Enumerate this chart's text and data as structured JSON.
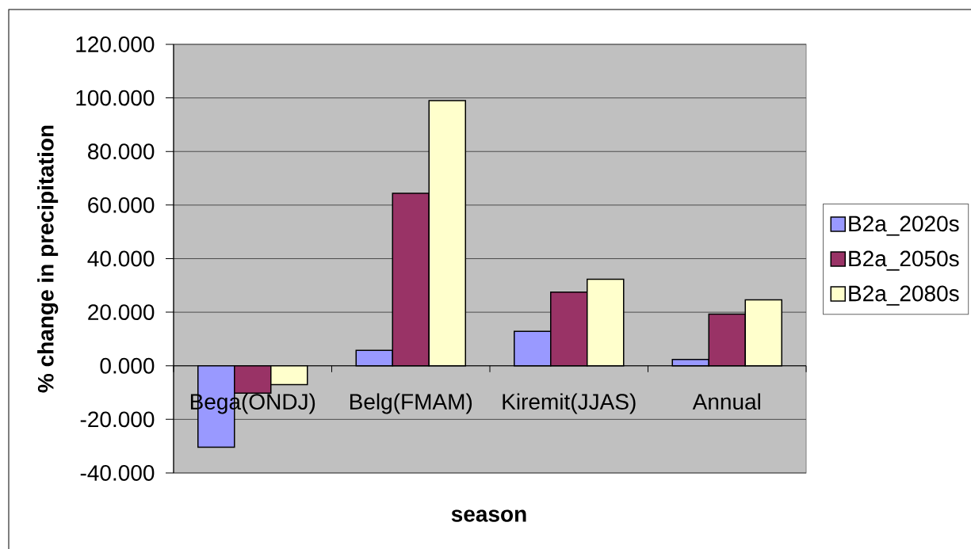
{
  "chart_data": {
    "type": "bar",
    "xlabel": "season",
    "ylabel": "% change in precipitation",
    "categories": [
      "Bega(ONDJ)",
      "Belg(FMAM)",
      "Kiremit(JJAS)",
      "Annual"
    ],
    "series": [
      {
        "name": "B2a_2020s",
        "color": "#9999ff",
        "values": [
          -30.4,
          5.8,
          12.9,
          2.4
        ]
      },
      {
        "name": "B2a_2050s",
        "color": "#993366",
        "values": [
          -10.2,
          64.4,
          27.5,
          19.3
        ]
      },
      {
        "name": "B2a_2080s",
        "color": "#ffffcc",
        "values": [
          -7.0,
          99.0,
          32.3,
          24.6
        ]
      }
    ],
    "ylim": [
      -40,
      120
    ],
    "yticks": [
      {
        "value": -40,
        "label": "-40.000"
      },
      {
        "value": -20,
        "label": "-20.000"
      },
      {
        "value": 0,
        "label": "0.000"
      },
      {
        "value": 20,
        "label": "20.000"
      },
      {
        "value": 40,
        "label": "40.000"
      },
      {
        "value": 60,
        "label": "60.000"
      },
      {
        "value": 80,
        "label": "80.000"
      },
      {
        "value": 100,
        "label": "100.000"
      },
      {
        "value": 120,
        "label": "120.000"
      }
    ],
    "grid": "y",
    "legend": "right"
  }
}
